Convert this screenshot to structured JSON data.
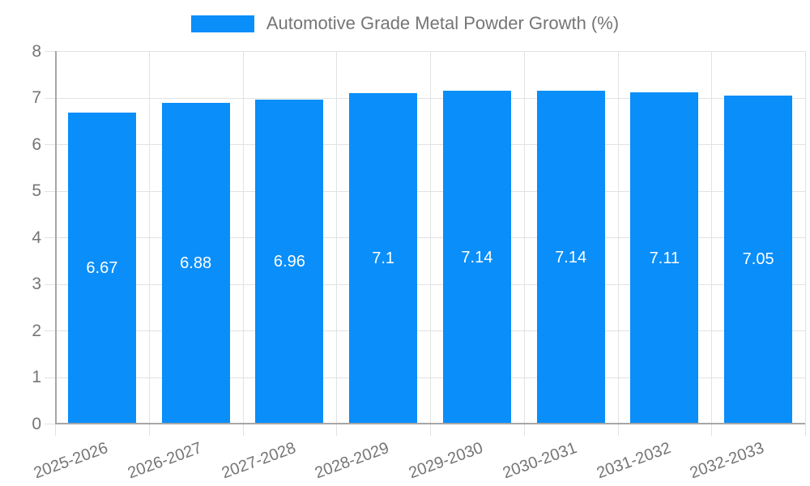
{
  "legend": {
    "label": "Automotive Grade Metal Powder Growth (%)"
  },
  "colors": {
    "bar": "#0a8ef9",
    "grid": "#e2e2e2",
    "axis": "#a6a6a6",
    "text": "#757575",
    "bar_label": "#ffffff",
    "background": "#ffffff"
  },
  "chart_data": {
    "type": "bar",
    "title": "Automotive Grade Metal Powder Growth (%)",
    "categories": [
      "2025-2026",
      "2026-2027",
      "2027-2028",
      "2028-2029",
      "2029-2030",
      "2030-2031",
      "2031-2032",
      "2032-2033"
    ],
    "values": [
      6.67,
      6.88,
      6.96,
      7.1,
      7.14,
      7.14,
      7.11,
      7.05
    ],
    "bar_labels": [
      "6.67",
      "6.88",
      "6.96",
      "7.1",
      "7.14",
      "7.14",
      "7.11",
      "7.05"
    ],
    "xlabel": "",
    "ylabel": "",
    "ylim": [
      0,
      8
    ],
    "yticks": [
      0,
      1,
      2,
      3,
      4,
      5,
      6,
      7,
      8
    ],
    "grid": true,
    "legend_position": "top",
    "x_tick_rotation_deg": -20
  }
}
